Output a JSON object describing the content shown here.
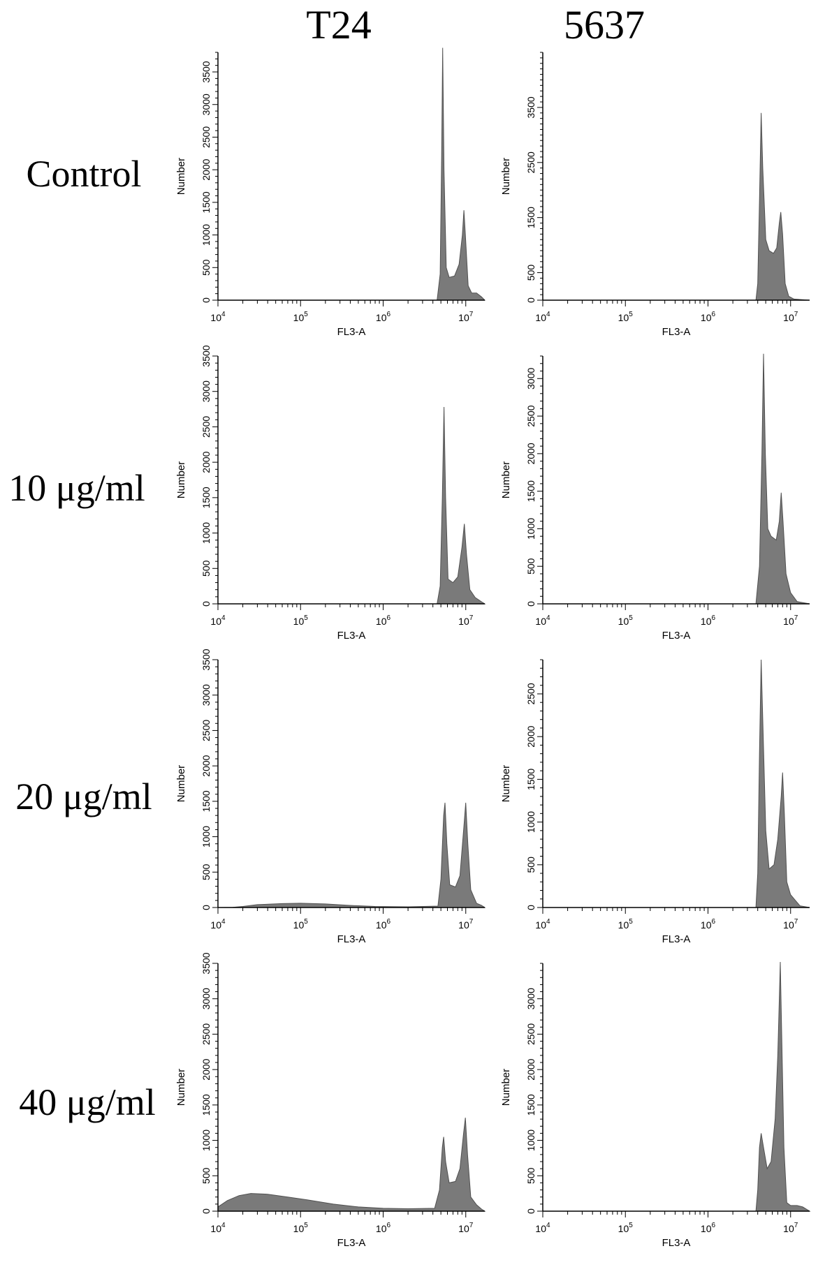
{
  "figure": {
    "col_titles": [
      "T24",
      "5637"
    ],
    "row_labels": [
      "Control",
      "10 μg/ml",
      "20 μg/ml",
      "40 μg/ml"
    ]
  },
  "colors": {
    "fill": "#7a7a7a",
    "stroke": "#505050",
    "axis": "#000000"
  },
  "chart_data": [
    {
      "type": "area",
      "title": "T24",
      "row": "Control",
      "xlabel": "FL3-A",
      "ylabel": "Number",
      "xscale": "log",
      "xlim": [
        10000,
        17000000
      ],
      "ylim": [
        0,
        3800
      ],
      "yticks": [
        0,
        500,
        1000,
        1500,
        2000,
        2500,
        3000,
        3500
      ],
      "series": [
        {
          "values": [
            [
              10000,
              0
            ],
            [
              4500000,
              0
            ],
            [
              4900000,
              400
            ],
            [
              5100000,
              2200
            ],
            [
              5250000,
              3870
            ],
            [
              5450000,
              2000
            ],
            [
              5800000,
              500
            ],
            [
              6300000,
              350
            ],
            [
              7300000,
              370
            ],
            [
              8300000,
              550
            ],
            [
              9100000,
              1000
            ],
            [
              9500000,
              1380
            ],
            [
              9900000,
              1000
            ],
            [
              10700000,
              220
            ],
            [
              11800000,
              110
            ],
            [
              13500000,
              110
            ],
            [
              15500000,
              50
            ],
            [
              17000000,
              0
            ]
          ]
        }
      ]
    },
    {
      "type": "area",
      "title": "5637",
      "row": "Control",
      "xlabel": "FL3-A",
      "ylabel": "Number",
      "xscale": "log",
      "xlim": [
        10000,
        17000000
      ],
      "ylim": [
        0,
        4500
      ],
      "yticks": [
        0,
        500,
        1500,
        2500,
        3500
      ],
      "series": [
        {
          "values": [
            [
              10000,
              0
            ],
            [
              3800000,
              0
            ],
            [
              4000000,
              300
            ],
            [
              4200000,
              1800
            ],
            [
              4400000,
              3400
            ],
            [
              4600000,
              2400
            ],
            [
              5000000,
              1100
            ],
            [
              5500000,
              900
            ],
            [
              6200000,
              850
            ],
            [
              6800000,
              950
            ],
            [
              7300000,
              1400
            ],
            [
              7600000,
              1600
            ],
            [
              8000000,
              1200
            ],
            [
              8600000,
              300
            ],
            [
              9500000,
              70
            ],
            [
              11000000,
              20
            ],
            [
              17000000,
              0
            ]
          ]
        }
      ]
    },
    {
      "type": "area",
      "title": "T24",
      "row": "10 μg/ml",
      "xlabel": "FL3-A",
      "ylabel": "Number",
      "xscale": "log",
      "xlim": [
        10000,
        17000000
      ],
      "ylim": [
        0,
        3500
      ],
      "yticks": [
        0,
        500,
        1000,
        1500,
        2000,
        2500,
        3000,
        3500
      ],
      "series": [
        {
          "values": [
            [
              10000,
              0
            ],
            [
              4500000,
              0
            ],
            [
              4900000,
              250
            ],
            [
              5200000,
              1500
            ],
            [
              5450000,
              2780
            ],
            [
              5700000,
              1500
            ],
            [
              6100000,
              350
            ],
            [
              7000000,
              300
            ],
            [
              8000000,
              380
            ],
            [
              9000000,
              800
            ],
            [
              9600000,
              1130
            ],
            [
              10200000,
              700
            ],
            [
              11200000,
              200
            ],
            [
              13000000,
              90
            ],
            [
              15500000,
              30
            ],
            [
              17000000,
              0
            ]
          ]
        }
      ]
    },
    {
      "type": "area",
      "title": "5637",
      "row": "10 μg/ml",
      "xlabel": "FL3-A",
      "ylabel": "Number",
      "xscale": "log",
      "xlim": [
        10000,
        17000000
      ],
      "ylim": [
        0,
        3300
      ],
      "yticks": [
        0,
        500,
        1000,
        1500,
        2000,
        2500,
        3000
      ],
      "series": [
        {
          "values": [
            [
              10000,
              0
            ],
            [
              3800000,
              0
            ],
            [
              4200000,
              500
            ],
            [
              4500000,
              2000
            ],
            [
              4700000,
              3330
            ],
            [
              4950000,
              2000
            ],
            [
              5300000,
              1000
            ],
            [
              5800000,
              900
            ],
            [
              6700000,
              850
            ],
            [
              7300000,
              1100
            ],
            [
              7700000,
              1480
            ],
            [
              8100000,
              1100
            ],
            [
              8800000,
              400
            ],
            [
              10000000,
              150
            ],
            [
              12000000,
              30
            ],
            [
              17000000,
              0
            ]
          ]
        }
      ]
    },
    {
      "type": "area",
      "title": "T24",
      "row": "20 μg/ml",
      "xlabel": "FL3-A",
      "ylabel": "Number",
      "xscale": "log",
      "xlim": [
        10000,
        17000000
      ],
      "ylim": [
        0,
        3500
      ],
      "yticks": [
        0,
        500,
        1000,
        1500,
        2000,
        2500,
        3000,
        3500
      ],
      "series": [
        {
          "values": [
            [
              10000,
              0
            ],
            [
              15000,
              3
            ],
            [
              20000,
              15
            ],
            [
              30000,
              40
            ],
            [
              60000,
              55
            ],
            [
              100000,
              60
            ],
            [
              200000,
              50
            ],
            [
              400000,
              30
            ],
            [
              800000,
              15
            ],
            [
              2000000,
              10
            ],
            [
              4600000,
              20
            ],
            [
              5000000,
              400
            ],
            [
              5400000,
              1300
            ],
            [
              5600000,
              1480
            ],
            [
              5900000,
              900
            ],
            [
              6400000,
              320
            ],
            [
              7500000,
              290
            ],
            [
              8500000,
              450
            ],
            [
              9500000,
              1150
            ],
            [
              10000000,
              1480
            ],
            [
              10600000,
              900
            ],
            [
              11500000,
              250
            ],
            [
              13500000,
              60
            ],
            [
              15500000,
              30
            ],
            [
              17000000,
              0
            ]
          ]
        }
      ]
    },
    {
      "type": "area",
      "title": "5637",
      "row": "20 μg/ml",
      "xlabel": "FL3-A",
      "ylabel": "Number",
      "xscale": "log",
      "xlim": [
        10000,
        17000000
      ],
      "ylim": [
        0,
        2900
      ],
      "yticks": [
        0,
        500,
        1000,
        1500,
        2000,
        2500
      ],
      "series": [
        {
          "values": [
            [
              10000,
              0
            ],
            [
              3800000,
              0
            ],
            [
              4000000,
              400
            ],
            [
              4200000,
              1800
            ],
            [
              4400000,
              2900
            ],
            [
              4600000,
              2200
            ],
            [
              5000000,
              900
            ],
            [
              5500000,
              450
            ],
            [
              6300000,
              500
            ],
            [
              7000000,
              800
            ],
            [
              7700000,
              1300
            ],
            [
              8000000,
              1580
            ],
            [
              8400000,
              1100
            ],
            [
              9000000,
              300
            ],
            [
              10000000,
              150
            ],
            [
              11500000,
              80
            ],
            [
              13000000,
              20
            ],
            [
              17000000,
              0
            ]
          ]
        }
      ]
    },
    {
      "type": "area",
      "title": "T24",
      "row": "40 μg/ml",
      "xlabel": "FL3-A",
      "ylabel": "Number",
      "xscale": "log",
      "xlim": [
        10000,
        17000000
      ],
      "ylim": [
        0,
        3500
      ],
      "yticks": [
        0,
        500,
        1000,
        1500,
        2000,
        2500,
        3000,
        3500
      ],
      "series": [
        {
          "values": [
            [
              10000,
              60
            ],
            [
              13000,
              150
            ],
            [
              18000,
              220
            ],
            [
              25000,
              250
            ],
            [
              40000,
              240
            ],
            [
              70000,
              200
            ],
            [
              120000,
              160
            ],
            [
              250000,
              100
            ],
            [
              500000,
              60
            ],
            [
              1000000,
              40
            ],
            [
              2000000,
              35
            ],
            [
              4200000,
              40
            ],
            [
              4800000,
              300
            ],
            [
              5200000,
              900
            ],
            [
              5400000,
              1050
            ],
            [
              5700000,
              700
            ],
            [
              6300000,
              400
            ],
            [
              7500000,
              420
            ],
            [
              8500000,
              600
            ],
            [
              9400000,
              1100
            ],
            [
              9900000,
              1320
            ],
            [
              10500000,
              800
            ],
            [
              11500000,
              200
            ],
            [
              13500000,
              90
            ],
            [
              15500000,
              30
            ],
            [
              17000000,
              0
            ]
          ]
        }
      ]
    },
    {
      "type": "area",
      "title": "5637",
      "row": "40 μg/ml",
      "xlabel": "FL3-A",
      "ylabel": "Number",
      "xscale": "log",
      "xlim": [
        10000,
        17000000
      ],
      "ylim": [
        0,
        3500
      ],
      "yticks": [
        0,
        500,
        1000,
        1500,
        2000,
        2500,
        3000
      ],
      "series": [
        {
          "values": [
            [
              10000,
              0
            ],
            [
              3800000,
              0
            ],
            [
              4000000,
              300
            ],
            [
              4200000,
              900
            ],
            [
              4400000,
              1100
            ],
            [
              4700000,
              900
            ],
            [
              5200000,
              600
            ],
            [
              5800000,
              700
            ],
            [
              6500000,
              1300
            ],
            [
              7000000,
              2200
            ],
            [
              7300000,
              3000
            ],
            [
              7500000,
              3520
            ],
            [
              7800000,
              2500
            ],
            [
              8300000,
              900
            ],
            [
              9000000,
              120
            ],
            [
              10000000,
              80
            ],
            [
              12000000,
              80
            ],
            [
              14000000,
              60
            ],
            [
              17000000,
              0
            ]
          ]
        }
      ]
    }
  ]
}
